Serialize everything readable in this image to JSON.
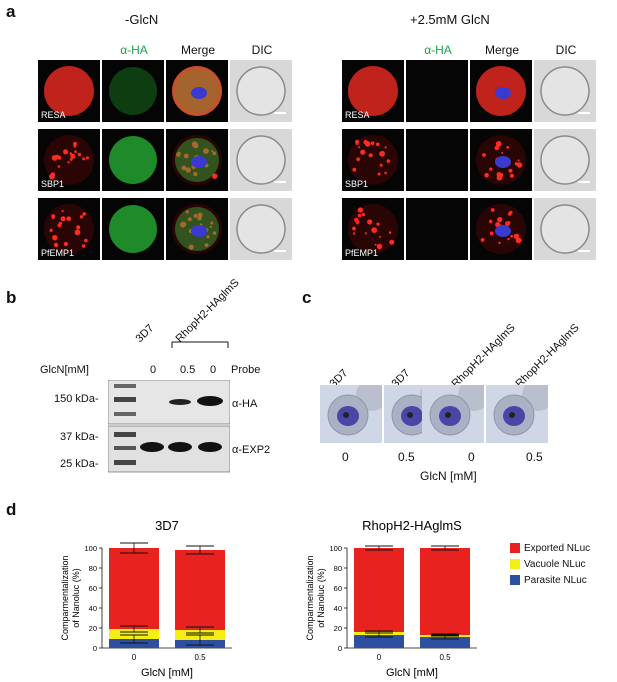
{
  "panel_a": {
    "letter": "a",
    "conditions": [
      "-GlcN",
      "+2.5mM GlcN"
    ],
    "columns": [
      "α-HA",
      "Merge",
      "DIC"
    ],
    "rows": [
      "RESA",
      "SBP1",
      "PfEMP1"
    ]
  },
  "panel_b": {
    "letter": "b",
    "strains": [
      "3D7",
      "RhopH2-HAglmS"
    ],
    "glcn_label": "GlcN[mM]",
    "glcn_values": [
      "0",
      "0.5",
      "0"
    ],
    "probe_label": "Probe",
    "markers": [
      "150 kDa-",
      "37 kDa-",
      "25 kDa-"
    ],
    "probes": [
      "α-HA",
      "α-EXP2"
    ]
  },
  "panel_c": {
    "letter": "c",
    "labels": [
      "3D7",
      "3D7",
      "RhopH2-HAglmS",
      "RhopH2-HAglmS"
    ],
    "values": [
      "0",
      "0.5",
      "0",
      "0.5"
    ],
    "xlabel": "GlcN [mM]"
  },
  "panel_d": {
    "letter": "d",
    "legend": [
      "Exported NLuc",
      "Vacuole NLuc",
      "Parasite NLuc"
    ]
  },
  "colors": {
    "exported": "#e8231f",
    "vacuole": "#f5ee13",
    "parasite": "#2e4ea1",
    "green_label": "#1aa64a"
  },
  "chart_data": [
    {
      "type": "bar",
      "stacked": true,
      "title": "3D7",
      "ylabel": "Comparmentalization of Nanoluc (%)",
      "xlabel": "GlcN [mM]",
      "categories": [
        "0",
        "0.5"
      ],
      "ylim": [
        0,
        100
      ],
      "yticks": [
        0,
        20,
        40,
        60,
        80,
        100
      ],
      "series": [
        {
          "name": "Parasite NLuc",
          "values": [
            9,
            8
          ],
          "errors": [
            4,
            5
          ]
        },
        {
          "name": "Vacuole NLuc",
          "values": [
            10,
            10
          ],
          "errors": [
            3,
            3
          ]
        },
        {
          "name": "Exported NLuc",
          "values": [
            81,
            80
          ],
          "errors": [
            5,
            4
          ]
        }
      ]
    },
    {
      "type": "bar",
      "stacked": true,
      "title": "RhopH2-HAglmS",
      "ylabel": "Comparmentalization of Nanoluc (%)",
      "xlabel": "GlcN [mM]",
      "categories": [
        "0",
        "0.5"
      ],
      "ylim": [
        0,
        100
      ],
      "yticks": [
        0,
        20,
        40,
        60,
        80,
        100
      ],
      "series": [
        {
          "name": "Parasite NLuc",
          "values": [
            13,
            11
          ],
          "errors": [
            2,
            2
          ]
        },
        {
          "name": "Vacuole NLuc",
          "values": [
            3,
            2
          ],
          "errors": [
            1,
            1
          ]
        },
        {
          "name": "Exported NLuc",
          "values": [
            84,
            87
          ],
          "errors": [
            2,
            2
          ]
        }
      ]
    }
  ]
}
